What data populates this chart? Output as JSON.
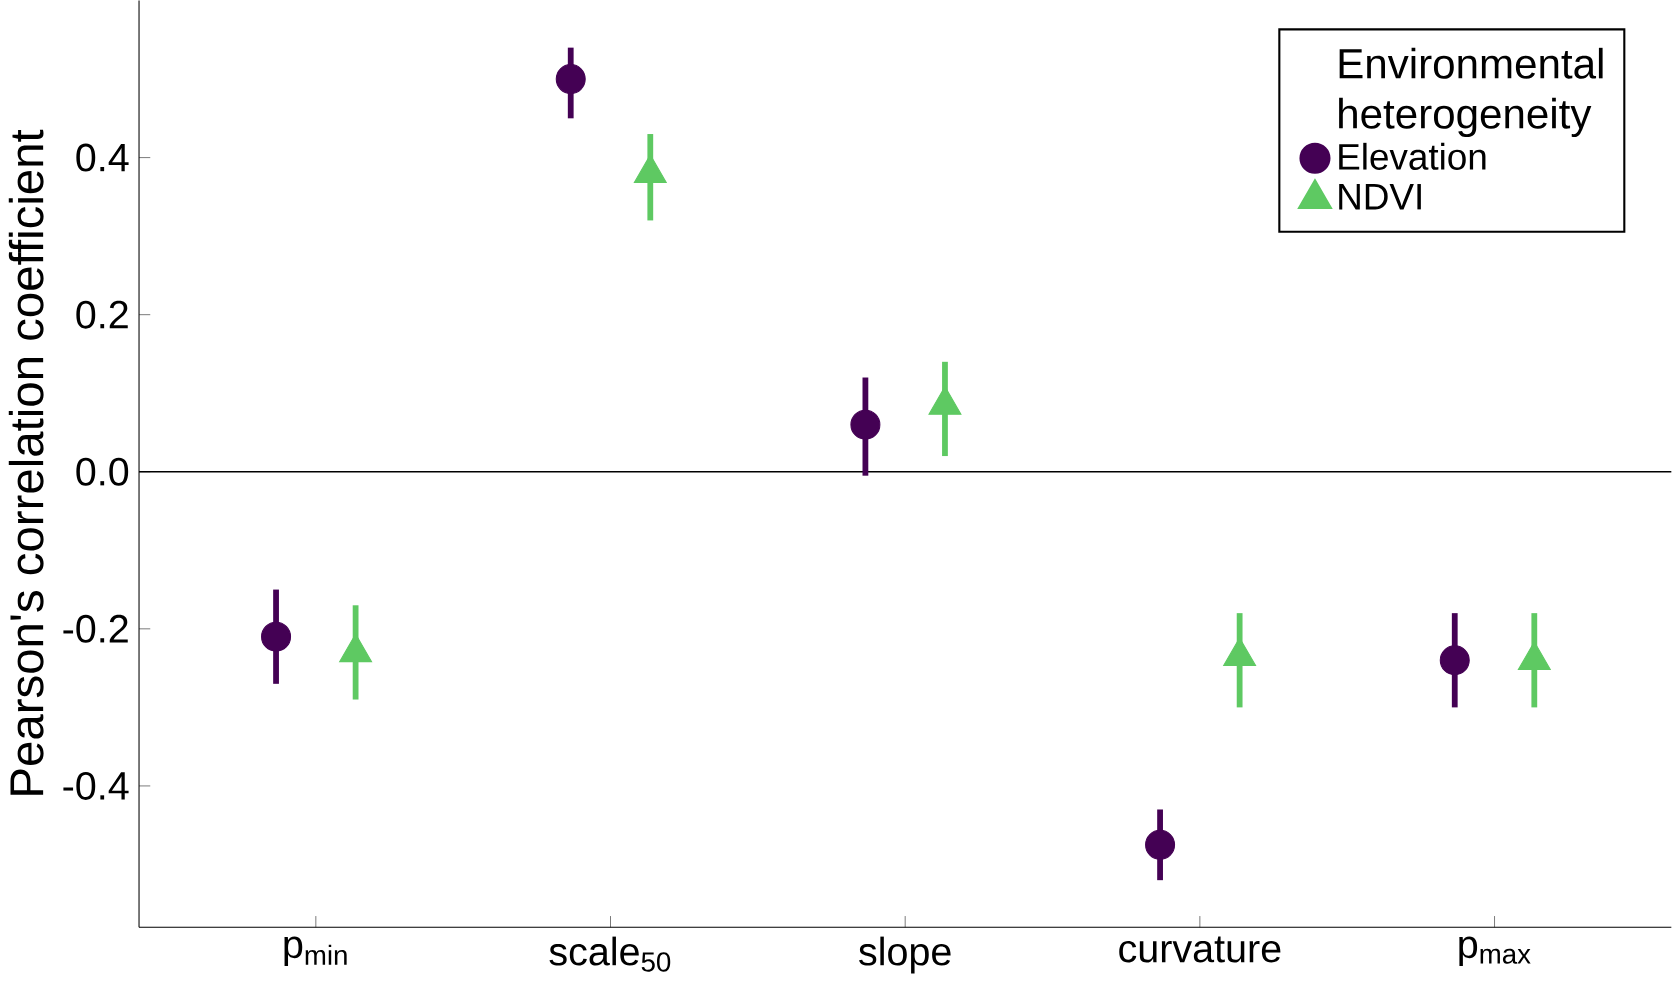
{
  "chart_data": {
    "type": "scatter",
    "ylabel": "Pearson's correlation coefficient",
    "legend_title": "Environmental heterogeneity",
    "categories": [
      "p$_{min}$",
      "scale$_{50}$",
      "slope",
      "curvature",
      "p$_{max}$"
    ],
    "series": [
      {
        "name": "Elevation",
        "color": "#440154",
        "marker": "circle",
        "values": [
          -0.21,
          0.5,
          0.06,
          -0.475,
          -0.24
        ],
        "errors": [
          [
            -0.27,
            -0.15
          ],
          [
            0.45,
            0.54
          ],
          [
            -0.005,
            0.12
          ],
          [
            -0.52,
            -0.43
          ],
          [
            -0.3,
            -0.18
          ]
        ]
      },
      {
        "name": "NDVI",
        "color": "#5ec962",
        "marker": "triangle",
        "values": [
          -0.23,
          0.38,
          0.085,
          -0.235,
          -0.24
        ],
        "errors": [
          [
            -0.29,
            -0.17
          ],
          [
            0.32,
            0.43
          ],
          [
            0.02,
            0.14
          ],
          [
            -0.3,
            -0.18
          ],
          [
            -0.3,
            -0.18
          ]
        ]
      }
    ],
    "ylim": [
      -0.58,
      0.6
    ],
    "yticks": [
      -0.4,
      -0.2,
      {
        "value": 0,
        "label": "0.0"
      },
      0.2,
      0.4
    ],
    "ref_lines": [
      {
        "axis": "y",
        "value": 0
      }
    ],
    "legend": "top right",
    "grid": false
  }
}
